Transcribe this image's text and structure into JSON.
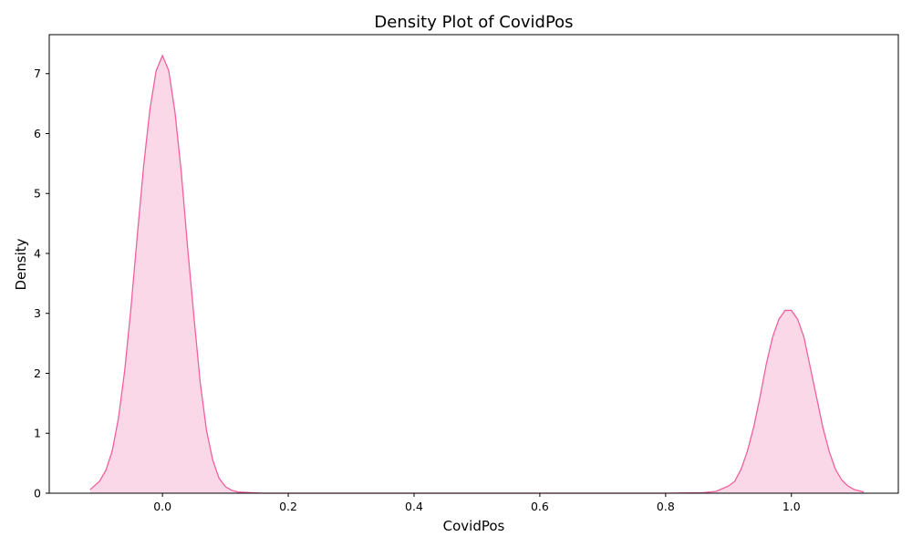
{
  "chart_data": {
    "type": "area",
    "title": "Density Plot of CovidPos",
    "xlabel": "CovidPos",
    "ylabel": "Density",
    "xlim": [
      -0.18,
      1.17
    ],
    "ylim": [
      0,
      7.65
    ],
    "grid": false,
    "legend": "none",
    "colors": {
      "line": "#f0609e",
      "fill": "#f9c8de"
    },
    "x_ticks": [
      {
        "value": 0.0,
        "label": "0.0"
      },
      {
        "value": 0.2,
        "label": "0.2"
      },
      {
        "value": 0.4,
        "label": "0.4"
      },
      {
        "value": 0.6,
        "label": "0.6"
      },
      {
        "value": 0.8,
        "label": "0.8"
      },
      {
        "value": 1.0,
        "label": "1.0"
      }
    ],
    "y_ticks": [
      {
        "value": 0,
        "label": "0"
      },
      {
        "value": 1,
        "label": "1"
      },
      {
        "value": 2,
        "label": "2"
      },
      {
        "value": 3,
        "label": "3"
      },
      {
        "value": 4,
        "label": "4"
      },
      {
        "value": 5,
        "label": "5"
      },
      {
        "value": 6,
        "label": "6"
      },
      {
        "value": 7,
        "label": "7"
      }
    ],
    "series": [
      {
        "x": [
          -0.115,
          -0.1,
          -0.09,
          -0.08,
          -0.07,
          -0.06,
          -0.05,
          -0.04,
          -0.03,
          -0.02,
          -0.01,
          0.0,
          0.01,
          0.02,
          0.03,
          0.04,
          0.05,
          0.06,
          0.07,
          0.08,
          0.09,
          0.1,
          0.11,
          0.12,
          0.14,
          0.16,
          0.2,
          0.4,
          0.6,
          0.8,
          0.86,
          0.88,
          0.9,
          0.91,
          0.92,
          0.93,
          0.94,
          0.95,
          0.96,
          0.97,
          0.98,
          0.99,
          1.0,
          1.01,
          1.02,
          1.03,
          1.04,
          1.05,
          1.06,
          1.07,
          1.08,
          1.09,
          1.1,
          1.115
        ],
        "y": [
          0.06,
          0.2,
          0.38,
          0.7,
          1.25,
          2.05,
          3.1,
          4.3,
          5.45,
          6.4,
          7.05,
          7.3,
          7.05,
          6.35,
          5.35,
          4.1,
          2.95,
          1.85,
          1.05,
          0.55,
          0.25,
          0.11,
          0.05,
          0.02,
          0.01,
          0.0,
          0.0,
          0.0,
          0.0,
          0.0,
          0.01,
          0.03,
          0.12,
          0.2,
          0.4,
          0.7,
          1.1,
          1.6,
          2.15,
          2.6,
          2.9,
          3.05,
          3.05,
          2.9,
          2.6,
          2.1,
          1.6,
          1.1,
          0.7,
          0.4,
          0.22,
          0.12,
          0.06,
          0.02
        ]
      }
    ]
  }
}
